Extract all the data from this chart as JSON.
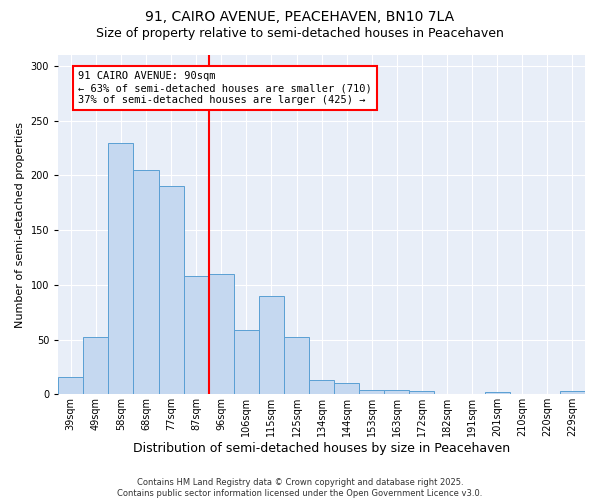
{
  "title_line1": "91, CAIRO AVENUE, PEACEHAVEN, BN10 7LA",
  "title_line2": "Size of property relative to semi-detached houses in Peacehaven",
  "xlabel": "Distribution of semi-detached houses by size in Peacehaven",
  "ylabel": "Number of semi-detached properties",
  "footnote": "Contains HM Land Registry data © Crown copyright and database right 2025.\nContains public sector information licensed under the Open Government Licence v3.0.",
  "bar_labels": [
    "39sqm",
    "49sqm",
    "58sqm",
    "68sqm",
    "77sqm",
    "87sqm",
    "96sqm",
    "106sqm",
    "115sqm",
    "125sqm",
    "134sqm",
    "144sqm",
    "153sqm",
    "163sqm",
    "172sqm",
    "182sqm",
    "191sqm",
    "201sqm",
    "210sqm",
    "220sqm",
    "229sqm"
  ],
  "bar_values": [
    16,
    52,
    230,
    205,
    190,
    108,
    110,
    59,
    90,
    52,
    13,
    10,
    4,
    4,
    3,
    0,
    0,
    2,
    0,
    0,
    3
  ],
  "bar_color": "#c5d8f0",
  "bar_edge_color": "#5a9fd4",
  "vline_color": "red",
  "vline_x_index": 5.5,
  "annotation_text": "91 CAIRO AVENUE: 90sqm\n← 63% of semi-detached houses are smaller (710)\n37% of semi-detached houses are larger (425) →",
  "annotation_box_color": "white",
  "annotation_box_edge": "red",
  "ylim": [
    0,
    310
  ],
  "yticks": [
    0,
    50,
    100,
    150,
    200,
    250,
    300
  ],
  "fig_bg_color": "#ffffff",
  "plot_bg_color": "#e8eef8",
  "title_fontsize": 10,
  "subtitle_fontsize": 9,
  "xlabel_fontsize": 9,
  "ylabel_fontsize": 8,
  "tick_fontsize": 7,
  "annotation_fontsize": 7.5,
  "footnote_fontsize": 6
}
